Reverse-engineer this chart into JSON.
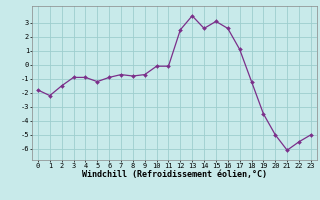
{
  "x": [
    0,
    1,
    2,
    3,
    4,
    5,
    6,
    7,
    8,
    9,
    10,
    11,
    12,
    13,
    14,
    15,
    16,
    17,
    18,
    19,
    20,
    21,
    22,
    23
  ],
  "y": [
    -1.8,
    -2.2,
    -1.5,
    -0.9,
    -0.9,
    -1.2,
    -0.9,
    -0.7,
    -0.8,
    -0.7,
    -0.1,
    -0.1,
    2.5,
    3.5,
    2.6,
    3.1,
    2.6,
    1.1,
    -1.2,
    -3.5,
    -5.0,
    -6.1,
    -5.5,
    -5.0
  ],
  "line_color": "#7b2f8a",
  "marker_color": "#7b2f8a",
  "background_color": "#c8eaea",
  "grid_color": "#9ecece",
  "xlabel": "Windchill (Refroidissement éolien,°C)",
  "xlim": [
    -0.5,
    23.5
  ],
  "ylim": [
    -6.8,
    4.2
  ],
  "yticks": [
    -6,
    -5,
    -4,
    -3,
    -2,
    -1,
    0,
    1,
    2,
    3
  ],
  "xticks": [
    0,
    1,
    2,
    3,
    4,
    5,
    6,
    7,
    8,
    9,
    10,
    11,
    12,
    13,
    14,
    15,
    16,
    17,
    18,
    19,
    20,
    21,
    22,
    23
  ],
  "tick_label_fontsize": 5.0,
  "xlabel_fontsize": 6.0,
  "line_width": 0.9,
  "marker_size": 2.0
}
